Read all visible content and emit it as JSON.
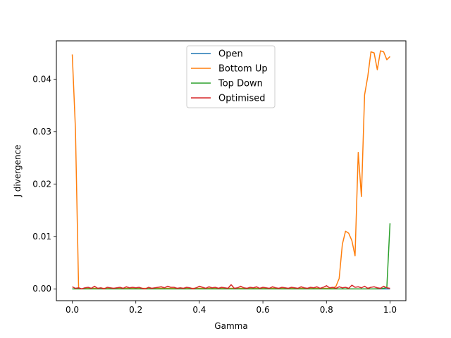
{
  "chart_data": {
    "type": "line",
    "xlabel": "Gamma",
    "ylabel": "J divergence",
    "xlim": [
      -0.05,
      1.05
    ],
    "ylim": [
      -0.00225,
      0.0473
    ],
    "x_ticks": [
      0.0,
      0.2,
      0.4,
      0.6,
      0.8,
      1.0
    ],
    "x_tick_labels": [
      "0.0",
      "0.2",
      "0.4",
      "0.6",
      "0.8",
      "1.0"
    ],
    "y_ticks": [
      0.0,
      0.01,
      0.02,
      0.03,
      0.04
    ],
    "y_tick_labels": [
      "0.00",
      "0.01",
      "0.02",
      "0.03",
      "0.04"
    ],
    "grid": false,
    "legend_position": "top-center",
    "series": [
      {
        "name": "Open",
        "color": "#1f77b4",
        "x": [
          0.0,
          0.2,
          0.4,
          0.6,
          0.8,
          1.0
        ],
        "y": [
          0.0,
          0.0,
          0.0,
          0.0,
          0.0,
          0.0
        ]
      },
      {
        "name": "Bottom Up",
        "color": "#ff7f0e",
        "x": [
          0.0,
          0.01,
          0.02,
          0.03,
          0.05,
          0.07,
          0.1,
          0.2,
          0.3,
          0.4,
          0.5,
          0.6,
          0.7,
          0.8,
          0.82,
          0.83,
          0.84,
          0.85,
          0.86,
          0.87,
          0.88,
          0.89,
          0.9,
          0.91,
          0.92,
          0.93,
          0.94,
          0.95,
          0.96,
          0.97,
          0.98,
          0.99,
          1.0
        ],
        "y": [
          0.0447,
          0.0305,
          0.0,
          0.0,
          0.0001,
          0.0001,
          0.0001,
          0.0001,
          0.0001,
          0.0001,
          0.0001,
          0.0001,
          0.0001,
          0.0001,
          0.0001,
          0.0005,
          0.002,
          0.0085,
          0.011,
          0.0106,
          0.0092,
          0.0063,
          0.026,
          0.0176,
          0.037,
          0.0405,
          0.0452,
          0.045,
          0.0418,
          0.0454,
          0.0452,
          0.0437,
          0.0443
        ]
      },
      {
        "name": "Top Down",
        "color": "#2ca02c",
        "x": [
          0.0,
          0.2,
          0.4,
          0.6,
          0.8,
          0.95,
          0.98,
          0.99,
          1.0
        ],
        "y": [
          0.0,
          0.0,
          0.0,
          0.0,
          0.0,
          0.0,
          0.0001,
          0.0003,
          0.0125
        ]
      },
      {
        "name": "Optimised",
        "color": "#d62728",
        "x": [
          0.0,
          0.01,
          0.02,
          0.03,
          0.04,
          0.05,
          0.06,
          0.07,
          0.08,
          0.09,
          0.1,
          0.11,
          0.12,
          0.13,
          0.14,
          0.15,
          0.16,
          0.17,
          0.18,
          0.19,
          0.2,
          0.21,
          0.22,
          0.23,
          0.24,
          0.25,
          0.26,
          0.27,
          0.28,
          0.29,
          0.3,
          0.31,
          0.32,
          0.33,
          0.34,
          0.35,
          0.36,
          0.37,
          0.38,
          0.39,
          0.4,
          0.41,
          0.42,
          0.43,
          0.44,
          0.45,
          0.46,
          0.47,
          0.48,
          0.49,
          0.5,
          0.51,
          0.52,
          0.53,
          0.54,
          0.55,
          0.56,
          0.57,
          0.58,
          0.59,
          0.6,
          0.61,
          0.62,
          0.63,
          0.64,
          0.65,
          0.66,
          0.67,
          0.68,
          0.69,
          0.7,
          0.71,
          0.72,
          0.73,
          0.74,
          0.75,
          0.76,
          0.77,
          0.78,
          0.79,
          0.8,
          0.81,
          0.82,
          0.83,
          0.84,
          0.85,
          0.86,
          0.87,
          0.88,
          0.89,
          0.9,
          0.91,
          0.92,
          0.93,
          0.94,
          0.95,
          0.96,
          0.97,
          0.98,
          0.99,
          1.0
        ],
        "y": [
          0.0004,
          0.0001,
          0.0002,
          0.0,
          0.0002,
          0.0003,
          0.0001,
          0.0005,
          0.0001,
          0.0002,
          0.0,
          0.0003,
          0.0002,
          0.0001,
          0.0002,
          0.0003,
          0.0001,
          0.0004,
          0.0002,
          0.0003,
          0.0002,
          0.0003,
          0.0001,
          0.0,
          0.0003,
          0.0001,
          0.0002,
          0.0003,
          0.0004,
          0.0002,
          0.0005,
          0.0003,
          0.0003,
          0.0001,
          0.0002,
          0.0001,
          0.0003,
          0.0002,
          0.0,
          0.0002,
          0.0005,
          0.0003,
          0.0001,
          0.0004,
          0.0002,
          0.0003,
          0.0001,
          0.0003,
          0.0002,
          0.0001,
          0.0008,
          0.0001,
          0.0002,
          0.0005,
          0.0002,
          0.0001,
          0.0003,
          0.0002,
          0.0004,
          0.0001,
          0.0003,
          0.0002,
          0.0001,
          0.0004,
          0.0002,
          0.0001,
          0.0003,
          0.0002,
          0.0001,
          0.0003,
          0.0002,
          0.0001,
          0.0004,
          0.0002,
          0.0001,
          0.0003,
          0.0002,
          0.0004,
          0.0001,
          0.0003,
          0.0006,
          0.0002,
          0.0003,
          0.0001,
          0.0004,
          0.0002,
          0.0003,
          0.0001,
          0.0007,
          0.0003,
          0.0004,
          0.0002,
          0.0005,
          0.0001,
          0.0003,
          0.0004,
          0.0002,
          0.0001,
          0.0005,
          0.0002,
          0.0001
        ]
      }
    ]
  }
}
